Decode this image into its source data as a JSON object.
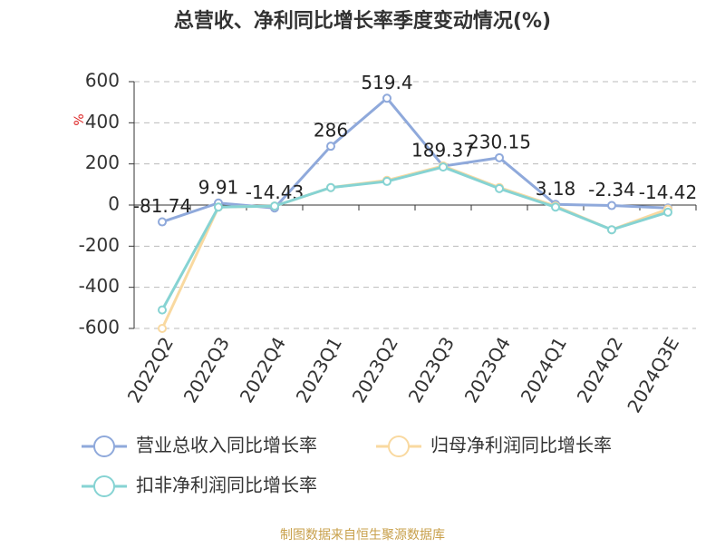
{
  "chart_data": {
    "type": "line",
    "title": "总营收、净利同比增长率季度变动情况(%)",
    "y_label": "%",
    "source": "制图数据来自恒生聚源数据库",
    "categories": [
      "2022Q2",
      "2022Q3",
      "2022Q4",
      "2023Q1",
      "2023Q2",
      "2023Q3",
      "2023Q4",
      "2024Q1",
      "2024Q2",
      "2024Q3E"
    ],
    "series": [
      {
        "name": "营业总收入同比增长率",
        "color": "#8fa9db",
        "show_labels": true,
        "values": [
          -81.74,
          9.91,
          -14.43,
          286,
          519.4,
          189.37,
          230.15,
          3.18,
          -2.34,
          -14.42
        ]
      },
      {
        "name": "归母净利润同比增长率",
        "color": "#f9d9a0",
        "show_labels": false,
        "values": [
          -600,
          -10,
          -5,
          85,
          120,
          190,
          85,
          -5,
          -120,
          -20
        ]
      },
      {
        "name": "扣非净利润同比增长率",
        "color": "#86d3d3",
        "show_labels": false,
        "values": [
          -510,
          -10,
          -5,
          85,
          115,
          185,
          80,
          -10,
          -120,
          -35
        ]
      }
    ],
    "ylim": [
      -600,
      600
    ],
    "yticks": [
      -600,
      -400,
      -200,
      0,
      200,
      400,
      600
    ],
    "grid": true
  }
}
